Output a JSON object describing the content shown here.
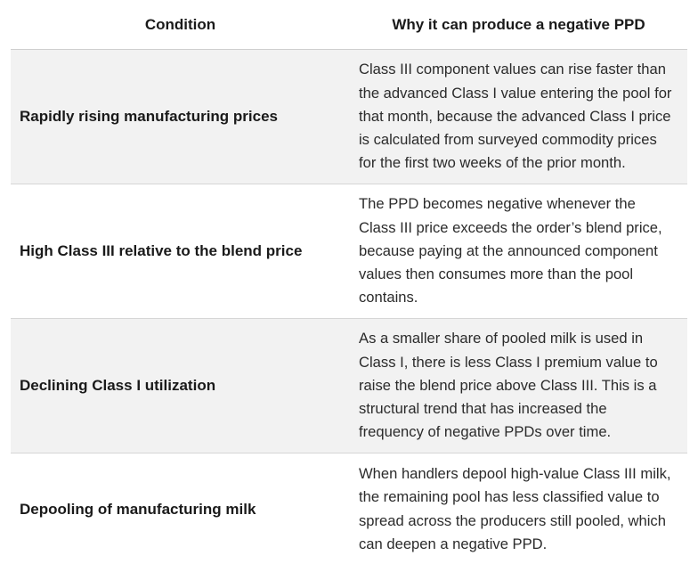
{
  "table": {
    "headers": {
      "condition": "Condition",
      "why": "Why it can produce a negative PPD"
    },
    "rows": [
      {
        "condition": "Rapidly rising manufacturing prices",
        "why": "Class III component values can rise faster than the advanced Class I value entering the pool for that month, because the advanced Class I price is calculated from surveyed commodity prices for the first two weeks of the prior month."
      },
      {
        "condition": "High Class III relative to the blend price",
        "why": "The PPD becomes negative whenever the Class III price exceeds the order’s blend price, because paying at the announced component values then consumes more than the pool contains."
      },
      {
        "condition": "Declining Class I utilization",
        "why": "As a smaller share of pooled milk is used in Class I, there is less Class I premium value to raise the blend price above Class III. This is a structural trend that has increased the frequency of negative PPDs over time."
      },
      {
        "condition": "Depooling of manufacturing milk",
        "why": "When handlers depool high-value Class III milk, the remaining pool has less classified value to spread across the producers still pooled, which can deepen a negative PPD."
      }
    ]
  }
}
